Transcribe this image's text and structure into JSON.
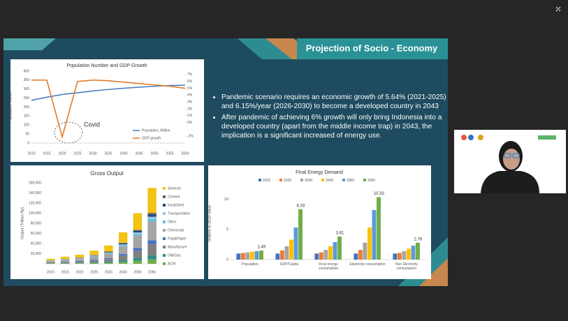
{
  "slide": {
    "title": "Projection of Socio - Economy",
    "bullets": [
      "Pandemic scenario requires an economic growth of 5.64% (2021-2025) and 6.15%/year (2026-2030) to become a developed country in 2043",
      "After pandemic of achieving 6% growth will only bring Indonesia into a developed country (apart from the middle income trap) in 2043, the implication is a significant increased of energy use."
    ]
  },
  "chart_data": [
    {
      "type": "line",
      "title": "Population Number and GDP Growth",
      "y_label": "Population, million",
      "annotation": "Covid",
      "categories": [
        "2010",
        "2015",
        "2020",
        "2025",
        "2030",
        "2035",
        "2040",
        "2045",
        "2050",
        "2055",
        "2060"
      ],
      "series": [
        {
          "name": "Population, Million",
          "color": "#4f81bd",
          "values": [
            238,
            255,
            270,
            280,
            290,
            298,
            305,
            311,
            316,
            320,
            322
          ]
        },
        {
          "name": "GDP growth",
          "color": "#e07b2a",
          "axis": "y2",
          "values": [
            6.2,
            6.2,
            -2.1,
            6.0,
            6.2,
            6.1,
            5.9,
            5.7,
            5.5,
            5.3,
            5.0
          ]
        }
      ],
      "ylim": [
        0,
        400
      ],
      "yticks": [
        0,
        50,
        100,
        150,
        200,
        250,
        300,
        350,
        400
      ],
      "y2lim": [
        -3,
        7.5
      ],
      "y2ticks": [
        {
          "value": -2,
          "label": "-2%"
        },
        {
          "value": 0,
          "label": "0%"
        },
        {
          "value": 1,
          "label": "1%"
        },
        {
          "value": 2,
          "label": "2%"
        },
        {
          "value": 3,
          "label": "3%"
        },
        {
          "value": 4,
          "label": "4%"
        },
        {
          "value": 5,
          "label": "5%"
        },
        {
          "value": 6,
          "label": "6%"
        },
        {
          "value": 7,
          "label": "7%"
        }
      ]
    },
    {
      "type": "stacked_bar",
      "title": "Gross Output",
      "y_label": "Output (Trillion Rp)",
      "categories": [
        "2010",
        "2015",
        "2020",
        "2025",
        "2030",
        "2040",
        "2050",
        "2060"
      ],
      "series": [
        {
          "name": "ACM",
          "color": "#70ad47",
          "values": [
            600,
            840,
            1080,
            1560,
            2160,
            3720,
            6000,
            9000
          ]
        },
        {
          "name": "Oil&Gas",
          "color": "#2e8b8b",
          "values": [
            500,
            700,
            900,
            1300,
            1800,
            3100,
            5000,
            7500
          ]
        },
        {
          "name": "Manufacture",
          "color": "#7f7f7f",
          "values": [
            1500,
            2100,
            2700,
            3900,
            5400,
            9300,
            15000,
            22500
          ]
        },
        {
          "name": "Pulp&Paper",
          "color": "#4472c4",
          "values": [
            500,
            700,
            900,
            1300,
            1800,
            3100,
            5000,
            7500
          ]
        },
        {
          "name": "Chemicals",
          "color": "#a5a5a5",
          "values": [
            2500,
            3500,
            4500,
            6500,
            9000,
            15500,
            25000,
            37500
          ]
        },
        {
          "name": "Other",
          "color": "#5bc0de",
          "values": [
            300,
            420,
            540,
            780,
            1080,
            1860,
            3000,
            4500
          ]
        },
        {
          "name": "Transportation",
          "color": "#9dc3e6",
          "values": [
            300,
            420,
            540,
            780,
            1080,
            1860,
            3000,
            4500
          ]
        },
        {
          "name": "Iron&Steel",
          "color": "#264478",
          "values": [
            300,
            420,
            540,
            780,
            1080,
            1860,
            3000,
            4500
          ]
        },
        {
          "name": "Cement",
          "color": "#636363",
          "values": [
            200,
            280,
            360,
            520,
            720,
            1240,
            2000,
            3000
          ]
        },
        {
          "name": "Services",
          "color": "#f2c314",
          "values": [
            3300,
            4620,
            5940,
            8580,
            11880,
            20460,
            33000,
            49500
          ]
        }
      ],
      "ylim": [
        0,
        160000
      ],
      "yticks": [
        {
          "value": 20000,
          "label": "20,000"
        },
        {
          "value": 40000,
          "label": "40,000"
        },
        {
          "value": 60000,
          "label": "60,000"
        },
        {
          "value": 80000,
          "label": "80,000"
        },
        {
          "value": 100000,
          "label": "100,000"
        },
        {
          "value": 120000,
          "label": "120,000"
        },
        {
          "value": 140000,
          "label": "140,000"
        },
        {
          "value": 160000,
          "label": "160,000"
        }
      ]
    },
    {
      "type": "grouped_bar",
      "title": "Final Energy Demand",
      "y_label": "relative to 2010 value",
      "categories": [
        "Population",
        "GDP/Capita",
        "Final energy consumption",
        "Electricity consumption",
        "Non Electricity consumption"
      ],
      "series": [
        {
          "name": "2010",
          "color": "#4472c4",
          "values": [
            1,
            1,
            1,
            1,
            1
          ]
        },
        {
          "name": "2020",
          "color": "#ed7d31",
          "values": [
            1.1,
            1.5,
            1.2,
            1.6,
            1.1
          ]
        },
        {
          "name": "2030",
          "color": "#a5a5a5",
          "values": [
            1.2,
            2.2,
            1.6,
            2.8,
            1.4
          ]
        },
        {
          "name": "2040",
          "color": "#ffc000",
          "values": [
            1.3,
            3.3,
            2.2,
            5.3,
            1.8
          ]
        },
        {
          "name": "2050",
          "color": "#5b9bd5",
          "values": [
            1.4,
            5.3,
            2.9,
            8.2,
            2.3
          ]
        },
        {
          "name": "2060",
          "color": "#70ad47",
          "values": [
            1.49,
            8.33,
            3.81,
            10.33,
            2.78
          ],
          "labeled": true
        }
      ],
      "ylim": [
        0,
        12
      ],
      "yticks": [
        0,
        5,
        10
      ]
    }
  ]
}
